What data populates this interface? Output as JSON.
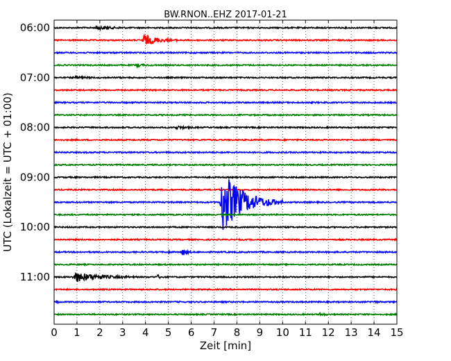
{
  "chart_data": {
    "type": "line",
    "title": "BW.RNON..EHZ 2017-01-21",
    "xlabel": "Zeit  [min]",
    "ylabel": "UTC (Lokalzeit = UTC + 01:00)",
    "xlim": [
      0,
      15
    ],
    "x_ticks": [
      "0",
      "1",
      "2",
      "3",
      "4",
      "5",
      "6",
      "7",
      "8",
      "9",
      "10",
      "11",
      "12",
      "13",
      "14",
      "15"
    ],
    "y_ticks": [
      "06:00",
      "07:00",
      "08:00",
      "09:00",
      "10:00",
      "11:00"
    ],
    "grid": "vertical dotted",
    "trace_colors": [
      "#000000",
      "#ff0000",
      "#0000ff",
      "#008000"
    ],
    "series": [
      {
        "time": "06:00",
        "color": "#000000",
        "events": [
          {
            "start": 1.8,
            "end": 3.2,
            "amp": 3
          }
        ]
      },
      {
        "time": "06:15",
        "color": "#ff0000",
        "events": [
          {
            "start": 3.85,
            "end": 5.5,
            "amp": 8
          }
        ]
      },
      {
        "time": "06:30",
        "color": "#0000ff",
        "events": []
      },
      {
        "time": "06:45",
        "color": "#008000",
        "events": [
          {
            "start": 3.6,
            "end": 4.4,
            "amp": 2
          }
        ]
      },
      {
        "time": "07:00",
        "color": "#000000",
        "events": [
          {
            "start": 0.9,
            "end": 1.8,
            "amp": 2
          }
        ]
      },
      {
        "time": "07:15",
        "color": "#ff0000",
        "events": []
      },
      {
        "time": "07:30",
        "color": "#0000ff",
        "events": []
      },
      {
        "time": "07:45",
        "color": "#008000",
        "events": []
      },
      {
        "time": "08:00",
        "color": "#000000",
        "events": [
          {
            "start": 5.3,
            "end": 6.3,
            "amp": 2
          }
        ]
      },
      {
        "time": "08:15",
        "color": "#ff0000",
        "events": []
      },
      {
        "time": "08:30",
        "color": "#0000ff",
        "events": []
      },
      {
        "time": "08:45",
        "color": "#008000",
        "events": []
      },
      {
        "time": "09:00",
        "color": "#000000",
        "events": []
      },
      {
        "time": "09:15",
        "color": "#ff0000",
        "events": []
      },
      {
        "time": "09:30",
        "color": "#0000ff",
        "events": [
          {
            "start": 7.25,
            "end": 10.0,
            "amp": 45
          }
        ]
      },
      {
        "time": "09:45",
        "color": "#008000",
        "events": []
      },
      {
        "time": "10:00",
        "color": "#000000",
        "events": []
      },
      {
        "time": "10:15",
        "color": "#ff0000",
        "events": []
      },
      {
        "time": "10:30",
        "color": "#0000ff",
        "events": [
          {
            "start": 5.6,
            "end": 6.0,
            "amp": 7
          },
          {
            "start": 5.0,
            "end": 5.2,
            "amp": 2
          }
        ]
      },
      {
        "time": "10:45",
        "color": "#008000",
        "events": []
      },
      {
        "time": "11:00",
        "color": "#000000",
        "events": [
          {
            "start": 0.8,
            "end": 3.6,
            "amp": 7
          },
          {
            "start": 4.5,
            "end": 4.9,
            "amp": 3
          }
        ]
      },
      {
        "time": "11:15",
        "color": "#ff0000",
        "events": []
      },
      {
        "time": "11:30",
        "color": "#0000ff",
        "events": [
          {
            "start": 0.1,
            "end": 0.4,
            "amp": 2
          },
          {
            "start": 13.9,
            "end": 14.3,
            "amp": 2
          }
        ]
      },
      {
        "time": "11:45",
        "color": "#008000",
        "events": [
          {
            "start": 11.6,
            "end": 12.1,
            "amp": 2
          }
        ]
      }
    ]
  }
}
